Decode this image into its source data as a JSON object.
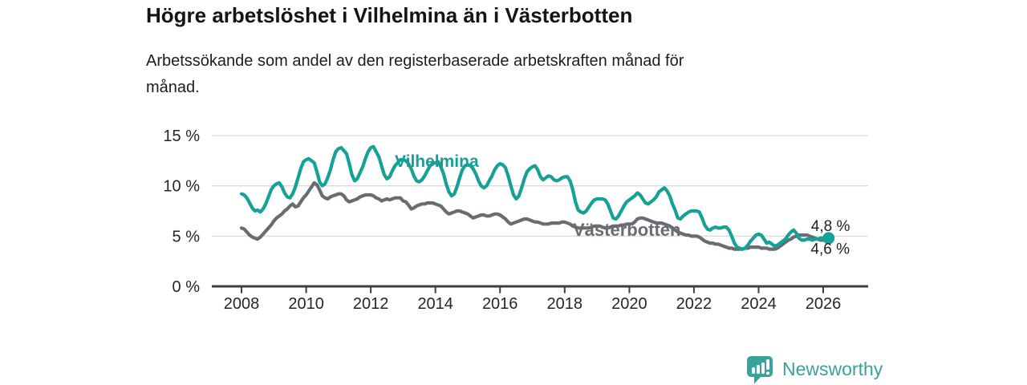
{
  "title": "Högre arbetslöshet i Vilhelmina än i Västerbotten",
  "subtitle": "Arbetssökande som andel av den registerbaserade arbetskraften månad för\nmånad.",
  "branding": {
    "label": "Newsworthy",
    "icon": "speech-bubble-bar-chart-icon",
    "color": "#3aa19b"
  },
  "chart_data": {
    "type": "line",
    "title": "Högre arbetslöshet i Vilhelmina än i Västerbotten",
    "subtitle": "Arbetssökande som andel av den registerbaserade arbetskraften månad för månad.",
    "x_unit": "month",
    "xlim": [
      2007.1,
      2027.4
    ],
    "ylim": [
      0,
      15.8
    ],
    "grid": "horizontal",
    "legend": "inline-labels-on-lines",
    "x_ticks": [
      2008,
      2010,
      2012,
      2014,
      2016,
      2018,
      2020,
      2022,
      2024,
      2026
    ],
    "x_tick_labels": [
      "2008",
      "2010",
      "2012",
      "2014",
      "2016",
      "2018",
      "2020",
      "2022",
      "2024",
      "2026"
    ],
    "y_ticks": [
      0,
      5,
      10,
      15
    ],
    "y_tick_labels": [
      "0 %",
      "5 %",
      "10 %",
      "15 %"
    ],
    "series": [
      {
        "name": "Vilhelmina",
        "color": "#15a195",
        "start_year": 2008,
        "start_month": 1,
        "end_label": "4,8 %",
        "latest_value": 4.8,
        "end_dot": true,
        "values": [
          9.2,
          9.1,
          8.8,
          8.3,
          7.8,
          7.5,
          7.6,
          7.4,
          7.7,
          8.2,
          8.9,
          9.6,
          10.0,
          10.2,
          10.3,
          9.9,
          9.3,
          8.9,
          8.8,
          9.2,
          9.9,
          10.8,
          11.7,
          12.4,
          12.6,
          12.7,
          12.5,
          12.3,
          11.4,
          10.4,
          10.0,
          10.2,
          10.8,
          11.6,
          12.6,
          13.4,
          13.7,
          13.8,
          13.5,
          13.2,
          12.2,
          11.1,
          10.5,
          10.7,
          11.3,
          11.9,
          12.7,
          13.4,
          13.8,
          13.9,
          13.4,
          12.9,
          12.0,
          11.1,
          10.7,
          10.9,
          11.5,
          12.0,
          12.3,
          12.6,
          12.6,
          12.5,
          12.2,
          11.7,
          11.0,
          10.5,
          10.4,
          10.6,
          11.0,
          11.5,
          12.0,
          12.2,
          12.3,
          12.4,
          11.9,
          11.2,
          10.2,
          9.4,
          9.0,
          9.2,
          9.9,
          10.8,
          11.6,
          12.0,
          12.1,
          12.0,
          11.7,
          11.2,
          10.5,
          10.0,
          9.8,
          10.0,
          10.5,
          11.0,
          11.6,
          12.0,
          12.2,
          12.1,
          11.8,
          11.0,
          10.0,
          9.1,
          8.7,
          9.0,
          9.8,
          10.7,
          11.4,
          11.7,
          11.9,
          12.0,
          11.6,
          10.9,
          10.6,
          10.8,
          11.0,
          10.9,
          10.6,
          10.5,
          10.6,
          10.8,
          10.9,
          10.9,
          10.5,
          9.6,
          8.4,
          7.6,
          7.4,
          7.3,
          7.5,
          7.9,
          8.3,
          8.6,
          8.7,
          8.7,
          8.7,
          8.6,
          8.2,
          7.5,
          6.8,
          6.7,
          7.0,
          7.5,
          8.0,
          8.4,
          8.6,
          8.8,
          9.0,
          9.3,
          9.1,
          8.7,
          8.3,
          8.2,
          8.4,
          8.6,
          8.9,
          9.4,
          9.6,
          9.8,
          9.5,
          9.0,
          8.2,
          7.6,
          6.8,
          6.7,
          7.0,
          7.2,
          7.4,
          7.5,
          7.5,
          7.5,
          7.4,
          6.8,
          6.1,
          5.7,
          5.6,
          5.8,
          5.9,
          5.8,
          5.8,
          5.9,
          5.9,
          5.6,
          5.0,
          4.3,
          3.9,
          3.8,
          3.7,
          3.8,
          4.1,
          4.5,
          4.8,
          5.1,
          5.2,
          5.1,
          4.7,
          4.3,
          4.4,
          4.2,
          4.0,
          4.1,
          4.3,
          4.5,
          4.7,
          5.1,
          5.4,
          5.6,
          5.3,
          4.8,
          4.6,
          4.6,
          4.7,
          4.7,
          4.6,
          4.7,
          4.7,
          4.8,
          4.8,
          4.7,
          4.8
        ]
      },
      {
        "name": "Västerbotten",
        "color": "#696c70",
        "start_year": 2008,
        "start_month": 1,
        "end_label": "4,6 %",
        "latest_value": 4.6,
        "end_dot": false,
        "values": [
          5.8,
          5.7,
          5.4,
          5.1,
          4.9,
          4.8,
          4.7,
          4.9,
          5.2,
          5.5,
          5.8,
          6.1,
          6.5,
          6.8,
          7.0,
          7.2,
          7.5,
          7.7,
          8.0,
          8.2,
          7.9,
          8.0,
          8.4,
          8.8,
          9.1,
          9.5,
          9.9,
          10.3,
          10.1,
          9.6,
          9.0,
          8.8,
          8.7,
          8.9,
          9.0,
          9.1,
          9.2,
          9.2,
          9.0,
          8.6,
          8.4,
          8.5,
          8.6,
          8.7,
          8.9,
          9.0,
          9.1,
          9.1,
          9.1,
          9.0,
          8.8,
          8.7,
          8.5,
          8.6,
          8.7,
          8.6,
          8.7,
          8.8,
          8.8,
          8.8,
          8.5,
          8.4,
          8.1,
          7.7,
          7.8,
          8.0,
          8.1,
          8.2,
          8.2,
          8.3,
          8.3,
          8.3,
          8.2,
          8.1,
          8.0,
          7.7,
          7.4,
          7.2,
          7.3,
          7.4,
          7.5,
          7.5,
          7.4,
          7.3,
          7.2,
          7.0,
          6.8,
          6.9,
          7.0,
          7.1,
          7.1,
          7.0,
          7.0,
          7.1,
          7.2,
          7.2,
          7.1,
          6.9,
          6.7,
          6.4,
          6.2,
          6.3,
          6.4,
          6.5,
          6.6,
          6.7,
          6.7,
          6.6,
          6.5,
          6.4,
          6.4,
          6.3,
          6.2,
          6.2,
          6.2,
          6.3,
          6.3,
          6.3,
          6.3,
          6.4,
          6.4,
          6.3,
          6.2,
          6.0,
          5.9,
          5.8,
          5.8,
          5.8,
          5.8,
          5.8,
          5.9,
          6.0,
          6.0,
          6.0,
          5.9,
          5.8,
          5.8,
          5.9,
          6.0,
          6.0,
          6.0,
          6.1,
          6.1,
          6.2,
          6.2,
          6.2,
          6.4,
          6.7,
          6.8,
          6.8,
          6.7,
          6.6,
          6.5,
          6.4,
          6.3,
          6.3,
          6.3,
          6.2,
          6.1,
          6.0,
          5.8,
          5.6,
          5.4,
          5.3,
          5.2,
          5.1,
          5.1,
          5.0,
          5.0,
          5.0,
          4.9,
          4.7,
          4.5,
          4.4,
          4.3,
          4.3,
          4.2,
          4.2,
          4.1,
          4.0,
          3.9,
          3.8,
          3.8,
          3.7,
          3.7,
          3.7,
          3.7,
          3.8,
          3.8,
          3.9,
          3.9,
          3.9,
          3.9,
          3.8,
          3.8,
          3.8,
          3.7,
          3.7,
          3.7,
          3.8,
          4.0,
          4.2,
          4.4,
          4.6,
          4.7,
          4.9,
          5.0,
          5.1,
          5.1,
          5.1,
          5.1,
          5.0,
          4.9,
          4.8,
          4.7,
          4.6,
          4.6,
          4.6
        ]
      }
    ]
  }
}
